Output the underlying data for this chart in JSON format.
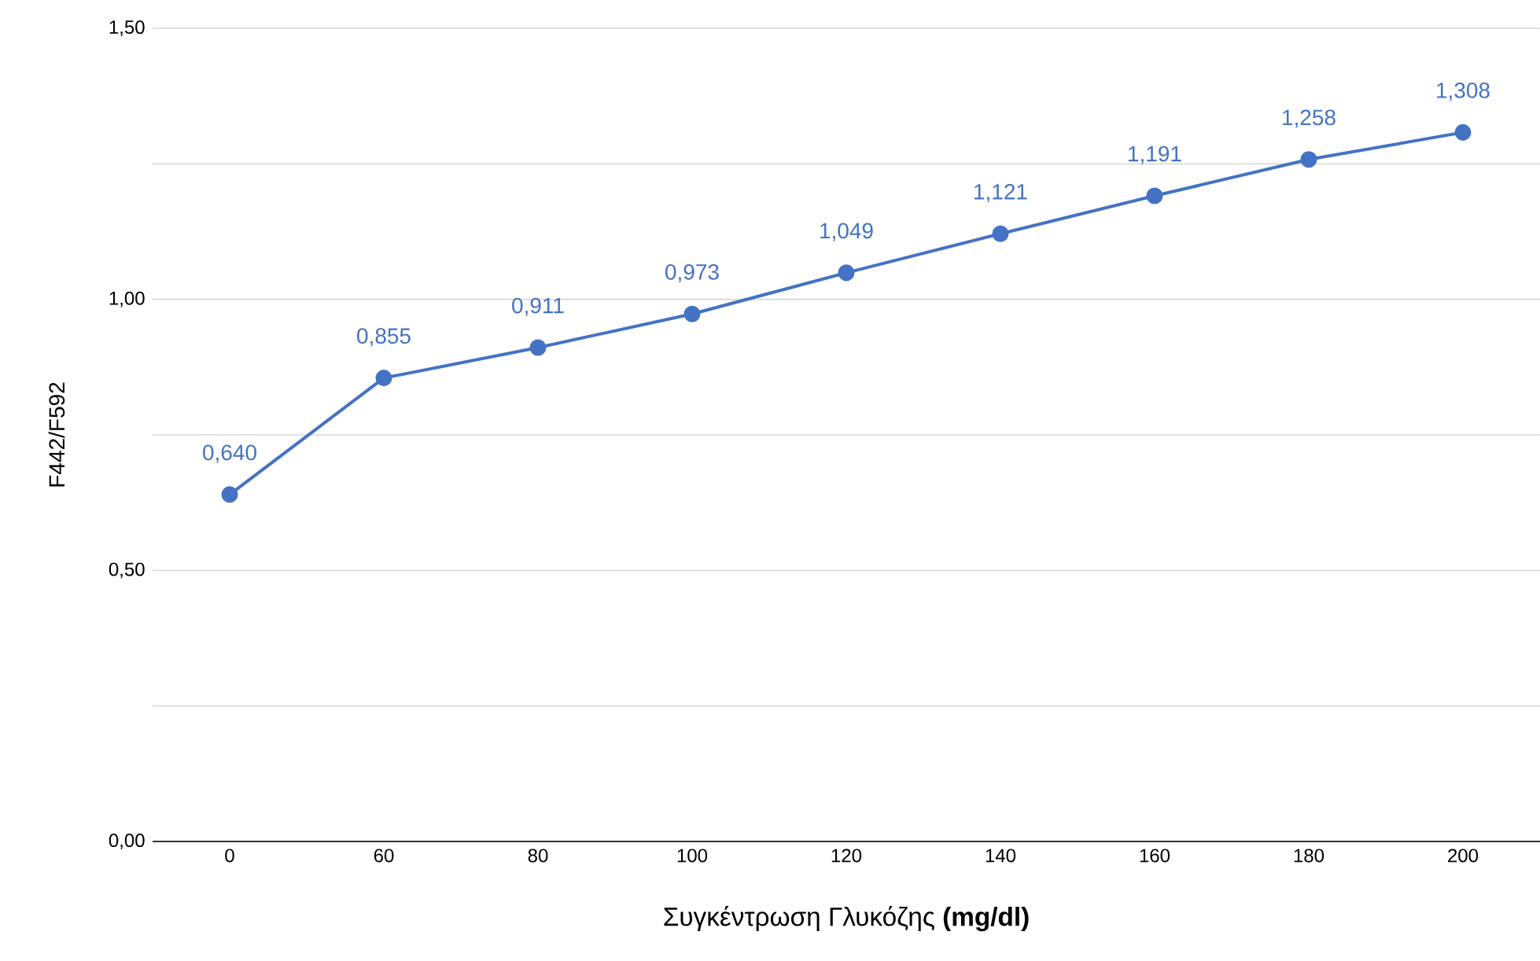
{
  "chart_data": {
    "type": "line",
    "xlabel": "Συγκέντρωση Γλυκόζης **(mg/dl)**",
    "ylabel": "F442/F592",
    "categories": [
      "0",
      "60",
      "80",
      "100",
      "120",
      "140",
      "160",
      "180",
      "200"
    ],
    "series": [
      {
        "color": "#4472c4",
        "values": [
          0.64,
          0.855,
          0.911,
          0.973,
          1.049,
          1.121,
          1.191,
          1.258,
          1.308
        ],
        "value_labels": [
          "0,640",
          "0,855",
          "0,911",
          "0,973",
          "1,049",
          "1,121",
          "1,191",
          "1,258",
          "1,308"
        ]
      }
    ],
    "ylim": [
      0,
      1.5
    ],
    "yticks": [
      {
        "value": 0,
        "label": "0,00"
      },
      {
        "value": 0.25,
        "label": null
      },
      {
        "value": 0.5,
        "label": "0,50"
      },
      {
        "value": 0.75,
        "label": null
      },
      {
        "value": 1,
        "label": "1,00"
      },
      {
        "value": 1.25,
        "label": null
      },
      {
        "value": 1.5,
        "label": "1,50"
      }
    ],
    "grid": "y",
    "marker": "circle",
    "line_style": "solid"
  }
}
